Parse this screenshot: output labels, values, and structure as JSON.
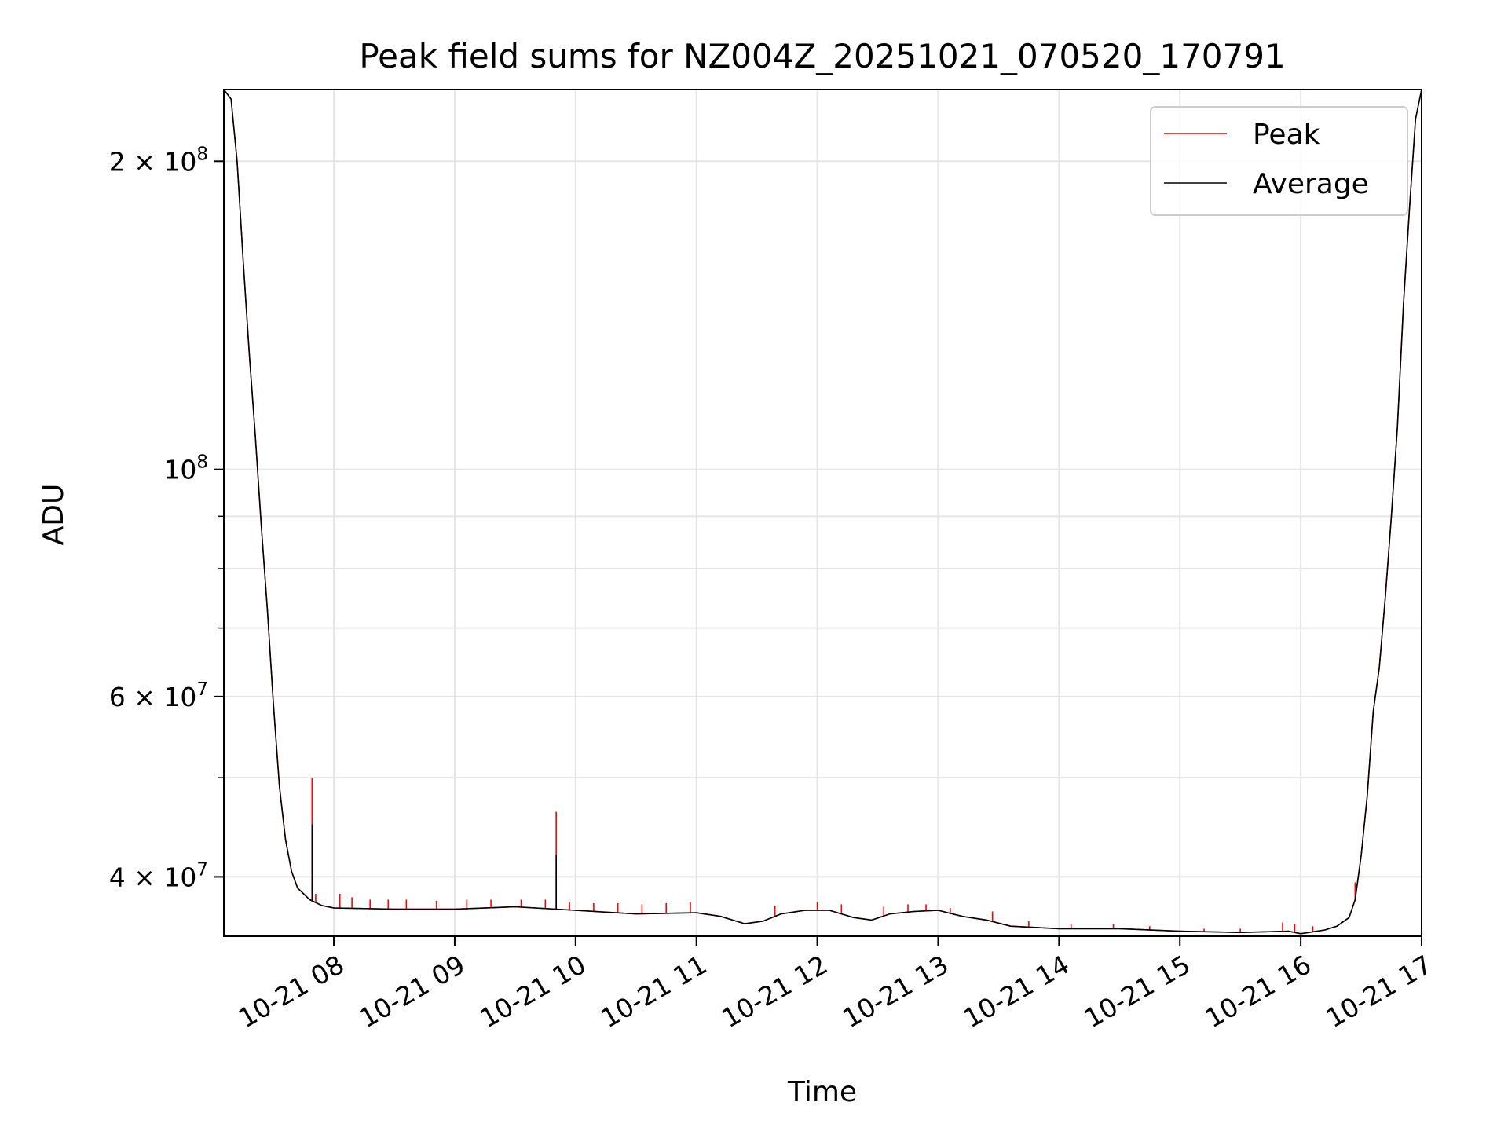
{
  "chart_data": {
    "type": "line",
    "title": "Peak field sums for NZ004Z_20251021_070520_170791",
    "xlabel": "Time",
    "ylabel": "ADU",
    "yscale": "log",
    "xlim_hours": [
      7.09,
      17.0
    ],
    "ylim": [
      35000000.0,
      235000000.0
    ],
    "grid": true,
    "legend_position": "top-right",
    "x_ticks": [
      {
        "value": 8,
        "label": "10-21 08"
      },
      {
        "value": 9,
        "label": "10-21 09"
      },
      {
        "value": 10,
        "label": "10-21 10"
      },
      {
        "value": 11,
        "label": "10-21 11"
      },
      {
        "value": 12,
        "label": "10-21 12"
      },
      {
        "value": 13,
        "label": "10-21 13"
      },
      {
        "value": 14,
        "label": "10-21 14"
      },
      {
        "value": 15,
        "label": "10-21 15"
      },
      {
        "value": 16,
        "label": "10-21 16"
      },
      {
        "value": 17,
        "label": "10-21 17"
      }
    ],
    "y_major_ticks": [
      {
        "value": 40000000,
        "mantissa": "4",
        "exp": "7"
      },
      {
        "value": 60000000,
        "mantissa": "6",
        "exp": "7"
      },
      {
        "value": 100000000,
        "mantissa": "",
        "exp": "8"
      },
      {
        "value": 200000000,
        "mantissa": "2",
        "exp": "8"
      }
    ],
    "y_minor_ticks": [
      50000000,
      70000000,
      80000000,
      90000000
    ],
    "series": [
      {
        "name": "Average",
        "color": "#000000",
        "points": [
          [
            7.09,
            235000000.0
          ],
          [
            7.15,
            230000000.0
          ],
          [
            7.2,
            200000000.0
          ],
          [
            7.25,
            160000000.0
          ],
          [
            7.3,
            130000000.0
          ],
          [
            7.35,
            108000000.0
          ],
          [
            7.4,
            88000000.0
          ],
          [
            7.45,
            73000000.0
          ],
          [
            7.5,
            59000000.0
          ],
          [
            7.55,
            49000000.0
          ],
          [
            7.6,
            43500000.0
          ],
          [
            7.65,
            40500000.0
          ],
          [
            7.7,
            39000000.0
          ],
          [
            7.8,
            38000000.0
          ],
          [
            7.9,
            37500000.0
          ],
          [
            8.0,
            37300000.0
          ],
          [
            8.5,
            37200000.0
          ],
          [
            9.0,
            37200000.0
          ],
          [
            9.5,
            37400000.0
          ],
          [
            10.0,
            37100000.0
          ],
          [
            10.5,
            36800000.0
          ],
          [
            11.0,
            36900000.0
          ],
          [
            11.2,
            36600000.0
          ],
          [
            11.4,
            36000000.0
          ],
          [
            11.55,
            36200000.0
          ],
          [
            11.7,
            36800000.0
          ],
          [
            11.9,
            37100000.0
          ],
          [
            12.1,
            37100000.0
          ],
          [
            12.3,
            36500000.0
          ],
          [
            12.45,
            36300000.0
          ],
          [
            12.6,
            36800000.0
          ],
          [
            12.8,
            37000000.0
          ],
          [
            13.0,
            37100000.0
          ],
          [
            13.2,
            36600000.0
          ],
          [
            13.4,
            36300000.0
          ],
          [
            13.6,
            35800000.0
          ],
          [
            13.8,
            35700000.0
          ],
          [
            14.0,
            35600000.0
          ],
          [
            14.5,
            35600000.0
          ],
          [
            15.0,
            35400000.0
          ],
          [
            15.5,
            35300000.0
          ],
          [
            15.9,
            35400000.0
          ],
          [
            16.0,
            35200000.0
          ],
          [
            16.2,
            35500000.0
          ],
          [
            16.3,
            35800000.0
          ],
          [
            16.4,
            36500000.0
          ],
          [
            16.45,
            38000000.0
          ],
          [
            16.5,
            42000000.0
          ],
          [
            16.55,
            48000000.0
          ],
          [
            16.6,
            58000000.0
          ],
          [
            16.65,
            64000000.0
          ],
          [
            16.7,
            75000000.0
          ],
          [
            16.75,
            90000000.0
          ],
          [
            16.8,
            110000000.0
          ],
          [
            16.85,
            145000000.0
          ],
          [
            16.9,
            180000000.0
          ],
          [
            16.95,
            220000000.0
          ],
          [
            17.0,
            235000000.0
          ]
        ]
      },
      {
        "name": "Peak",
        "color": "#ff0000",
        "spikes": [
          [
            7.82,
            50000000.0
          ],
          [
            7.85,
            38500000.0
          ],
          [
            8.05,
            38500000.0
          ],
          [
            8.15,
            38200000.0
          ],
          [
            8.3,
            38000000.0
          ],
          [
            8.45,
            38000000.0
          ],
          [
            8.6,
            38000000.0
          ],
          [
            8.85,
            37900000.0
          ],
          [
            9.1,
            38000000.0
          ],
          [
            9.3,
            38000000.0
          ],
          [
            9.55,
            38000000.0
          ],
          [
            9.75,
            38000000.0
          ],
          [
            9.84,
            46300000.0
          ],
          [
            9.95,
            37800000.0
          ],
          [
            10.15,
            37700000.0
          ],
          [
            10.35,
            37700000.0
          ],
          [
            10.55,
            37600000.0
          ],
          [
            10.75,
            37700000.0
          ],
          [
            10.95,
            37800000.0
          ],
          [
            11.65,
            37500000.0
          ],
          [
            12.0,
            37800000.0
          ],
          [
            12.2,
            37600000.0
          ],
          [
            12.55,
            37400000.0
          ],
          [
            12.75,
            37600000.0
          ],
          [
            12.9,
            37600000.0
          ],
          [
            13.1,
            37300000.0
          ],
          [
            13.45,
            37000000.0
          ],
          [
            13.75,
            36200000.0
          ],
          [
            14.1,
            36000000.0
          ],
          [
            14.45,
            36000000.0
          ],
          [
            14.75,
            35800000.0
          ],
          [
            15.2,
            35600000.0
          ],
          [
            15.5,
            35600000.0
          ],
          [
            15.85,
            36100000.0
          ],
          [
            15.95,
            36000000.0
          ],
          [
            16.1,
            35800000.0
          ],
          [
            16.45,
            39500000.0
          ]
        ]
      }
    ]
  }
}
